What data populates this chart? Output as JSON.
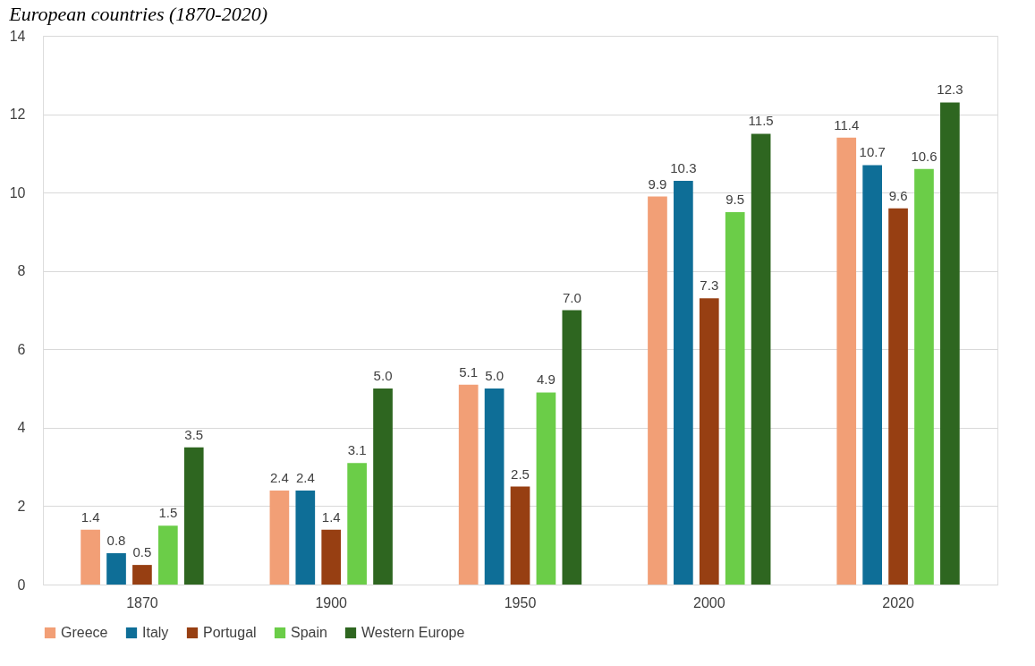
{
  "chart_data": {
    "type": "bar",
    "title": "European countries (1870-2020)",
    "categories": [
      "1870",
      "1900",
      "1950",
      "2000",
      "2020"
    ],
    "series": [
      {
        "name": "Greece",
        "color": "#f29f76",
        "values": [
          1.4,
          2.4,
          5.1,
          9.9,
          11.4
        ],
        "value_labels": [
          "1.4",
          "2.4",
          "5.1",
          "9.9",
          "11.4"
        ]
      },
      {
        "name": "Italy",
        "color": "#0e6e97",
        "values": [
          0.8,
          2.4,
          5.0,
          10.3,
          10.7
        ],
        "value_labels": [
          "0.8",
          "2.4",
          "5.0",
          "10.3",
          "10.7"
        ]
      },
      {
        "name": "Portugal",
        "color": "#973f12",
        "values": [
          0.5,
          1.4,
          2.5,
          7.3,
          9.6
        ],
        "value_labels": [
          "0.5",
          "1.4",
          "2.5",
          "7.3",
          "9.6"
        ]
      },
      {
        "name": "Spain",
        "color": "#6bcd48",
        "values": [
          1.5,
          3.1,
          4.9,
          9.5,
          10.6
        ],
        "value_labels": [
          "1.5",
          "3.1",
          "4.9",
          "9.5",
          "10.6"
        ]
      },
      {
        "name": "Western Europe",
        "color": "#2e6620",
        "values": [
          3.5,
          5.0,
          7.0,
          11.5,
          12.3
        ],
        "value_labels": [
          "3.5",
          "5.0",
          "7.0",
          "11.5",
          "12.3"
        ]
      }
    ],
    "ylim": [
      0,
      14
    ],
    "yticks": [
      0,
      2,
      4,
      6,
      8,
      10,
      12,
      14
    ],
    "grid": "y",
    "legend": "bottom"
  }
}
